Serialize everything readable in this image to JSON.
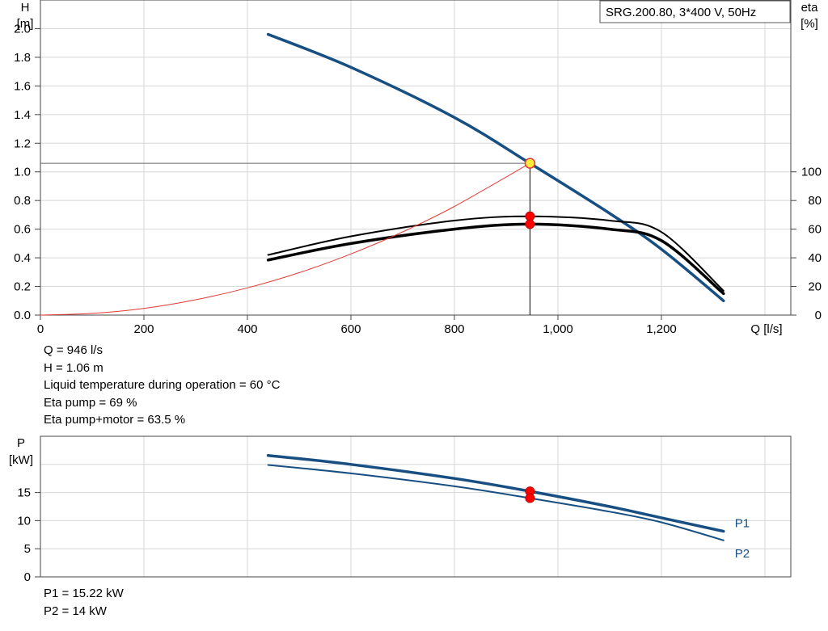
{
  "chart_data": [
    {
      "type": "line",
      "legend_box": "SRG.200.80, 3*400 V, 50Hz",
      "xlabel": "Q [l/s]",
      "ylabel_left": [
        "H",
        "[m]"
      ],
      "ylabel_right": [
        "eta",
        "[%]"
      ],
      "xlim": [
        0,
        1450
      ],
      "ylim_left": [
        0,
        2.2
      ],
      "ylim_right": [
        0,
        100
      ],
      "x_ticks": [
        0,
        200,
        400,
        600,
        800,
        1000,
        1200
      ],
      "x_tick_labels": [
        "0",
        "200",
        "400",
        "600",
        "800",
        "1,000",
        "1,200"
      ],
      "y_left_ticks": [
        0.0,
        0.2,
        0.4,
        0.6,
        0.8,
        1.0,
        1.2,
        1.4,
        1.6,
        1.8,
        2.0
      ],
      "y_left_tick_labels": [
        "0.0",
        "0.2",
        "0.4",
        "0.6",
        "0.8",
        "1.0",
        "1.2",
        "1.4",
        "1.6",
        "1.8",
        "2.0"
      ],
      "y_right_ticks": [
        0,
        20,
        40,
        60,
        80,
        100
      ],
      "y_right_tick_labels": [
        "0",
        "20",
        "40",
        "60",
        "80",
        "100"
      ],
      "grid": true,
      "colors": {
        "head": "#174f82",
        "eta": "#000000",
        "system": "#e53935",
        "point": "#ff0000",
        "duty": "#ffeb3b"
      },
      "series": [
        {
          "role": "head",
          "axis": "left",
          "x": [
            440,
            600,
            800,
            946,
            1100,
            1200,
            1320
          ],
          "y": [
            1.96,
            1.73,
            1.38,
            1.06,
            0.71,
            0.46,
            0.1
          ]
        },
        {
          "role": "eta_pump",
          "axis": "right",
          "x": [
            440,
            600,
            800,
            946,
            1100,
            1200,
            1320
          ],
          "y": [
            42,
            55,
            66,
            69,
            66,
            58,
            17
          ]
        },
        {
          "role": "eta_total",
          "axis": "right",
          "x": [
            440,
            600,
            800,
            946,
            1100,
            1200,
            1320
          ],
          "y": [
            38.5,
            50,
            60,
            63.5,
            60,
            52,
            15
          ]
        },
        {
          "role": "system_curve",
          "axis": "left",
          "x": [
            0,
            100,
            200,
            300,
            400,
            500,
            600,
            700,
            800,
            946
          ],
          "y": [
            0.0,
            0.012,
            0.047,
            0.107,
            0.19,
            0.296,
            0.427,
            0.581,
            0.759,
            1.06
          ]
        }
      ],
      "duty_point": {
        "x": 946,
        "y": 1.06
      },
      "eta_points": [
        {
          "axis": "right",
          "y": 69
        },
        {
          "axis": "right",
          "y": 63.5
        }
      ]
    },
    {
      "type": "line",
      "ylabel": [
        "P",
        "[kW]"
      ],
      "xlim": [
        0,
        1450
      ],
      "ylim": [
        0,
        25
      ],
      "y_ticks": [
        0,
        5,
        10,
        15
      ],
      "y_tick_labels": [
        "0",
        "5",
        "10",
        "15"
      ],
      "grid": true,
      "colors": {
        "line": "#174f82",
        "label": "#174f82",
        "point": "#ff0000"
      },
      "series": [
        {
          "name": "P1",
          "x": [
            440,
            600,
            800,
            946,
            1100,
            1200,
            1320
          ],
          "y": [
            21.6,
            20.0,
            17.5,
            15.22,
            12.5,
            10.5,
            8.1
          ]
        },
        {
          "name": "P2",
          "x": [
            440,
            600,
            800,
            946,
            1100,
            1200,
            1320
          ],
          "y": [
            19.9,
            18.4,
            16.1,
            14.0,
            11.6,
            9.7,
            6.5
          ]
        }
      ],
      "points": [
        {
          "x": 946,
          "y": 15.22
        },
        {
          "x": 946,
          "y": 14.0
        }
      ]
    }
  ],
  "readout": {
    "q": "Q = 946 l/s",
    "h": "H = 1.06 m",
    "temp": "Liquid temperature during operation = 60 °C",
    "eta_pump": "Eta pump = 69 %",
    "eta_total": "Eta pump+motor = 63.5 %"
  },
  "power_readout": {
    "p1": "P1 = 15.22 kW",
    "p2": "P2 = 14 kW"
  }
}
